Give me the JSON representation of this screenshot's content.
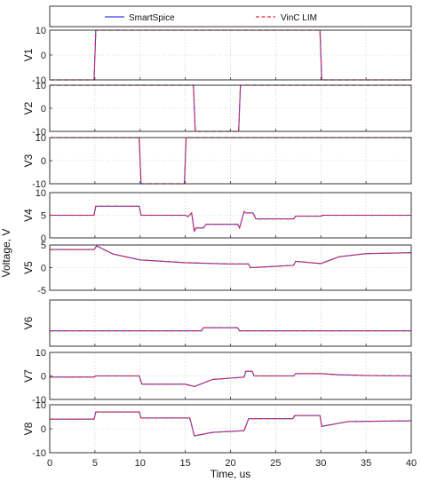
{
  "chart_data": {
    "type": "line",
    "legend": {
      "position": "top",
      "entries": [
        {
          "name": "SmartSpice",
          "color": "#3a3af0",
          "dash": "solid"
        },
        {
          "name": "VinC LIM",
          "color": "#e8283c",
          "dash": "dashed"
        }
      ]
    },
    "xlabel": "Time, us",
    "ylabel": "Voltage, V",
    "xlim": [
      0,
      40
    ],
    "xticks": [
      "0",
      "5",
      "10",
      "15",
      "20",
      "25",
      "30",
      "35",
      "40"
    ],
    "grid": true,
    "panels": [
      {
        "label": "V1",
        "ylim": [
          -10,
          10
        ],
        "yticks": [
          "-10",
          "0",
          "10"
        ],
        "x": [
          0,
          4.9,
          5.1,
          29.9,
          30.1,
          40
        ],
        "series": [
          {
            "name": "SmartSpice",
            "values": [
              -10,
              -10,
              10,
              10,
              -10,
              -10
            ]
          },
          {
            "name": "VinC LIM",
            "values": [
              -10,
              -10,
              10,
              10,
              -10,
              -10
            ]
          }
        ]
      },
      {
        "label": "V2",
        "ylim": [
          -10,
          10
        ],
        "yticks": [
          "-10",
          "0",
          "10"
        ],
        "x": [
          0,
          15.9,
          16.1,
          20.9,
          21.1,
          40
        ],
        "series": [
          {
            "name": "SmartSpice",
            "values": [
              10,
              10,
              -10,
              -10,
              10,
              10
            ]
          },
          {
            "name": "VinC LIM",
            "values": [
              10,
              10,
              -10,
              -10,
              10,
              10
            ]
          }
        ]
      },
      {
        "label": "V3",
        "ylim": [
          -10,
          10
        ],
        "yticks": [
          "-10",
          "0",
          "10"
        ],
        "x": [
          0,
          9.9,
          10.1,
          14.9,
          15.1,
          40
        ],
        "series": [
          {
            "name": "SmartSpice",
            "values": [
              10,
              10,
              -10,
              -10,
              10,
              10
            ]
          },
          {
            "name": "VinC LIM",
            "values": [
              10,
              10,
              -10,
              -10,
              10,
              10
            ]
          }
        ]
      },
      {
        "label": "V4",
        "ylim": [
          0,
          10
        ],
        "yticks": [
          "0",
          "5",
          "10"
        ],
        "x": [
          0,
          4.9,
          5.1,
          9.9,
          10.1,
          15,
          15.3,
          15.7,
          16,
          16.2,
          17,
          17.3,
          20.8,
          21,
          21.5,
          21.7,
          22.5,
          22.8,
          27,
          27.2,
          30,
          30.2,
          40
        ],
        "series": [
          {
            "name": "SmartSpice",
            "values": [
              5,
              5,
              7,
              7,
              5,
              5,
              4.7,
              5.5,
              1.5,
              2.2,
              2.2,
              3,
              3,
              2.2,
              5.8,
              5.5,
              5.5,
              4.2,
              4.2,
              4.8,
              4.8,
              5,
              5
            ]
          },
          {
            "name": "VinC LIM",
            "values": [
              5,
              5,
              7,
              7,
              5,
              5,
              4.7,
              5.5,
              1.5,
              2.2,
              2.2,
              3,
              3,
              2.2,
              5.8,
              5.5,
              5.5,
              4.2,
              4.2,
              4.8,
              4.8,
              5,
              5
            ]
          }
        ]
      },
      {
        "label": "V5",
        "ylim": [
          -5,
          5
        ],
        "yticks": [
          "-5",
          "0",
          "5"
        ],
        "x": [
          0,
          4.9,
          5.2,
          7,
          10,
          15,
          20,
          22,
          22.2,
          27,
          27.2,
          30,
          32,
          35,
          40
        ],
        "series": [
          {
            "name": "SmartSpice",
            "values": [
              4,
              4,
              4.8,
              3,
              1.7,
              1.1,
              0.8,
              0.8,
              0,
              0.5,
              1.4,
              0.9,
              2.4,
              3.1,
              3.3
            ]
          },
          {
            "name": "VinC LIM",
            "values": [
              4,
              4,
              4.8,
              3,
              1.7,
              1.1,
              0.8,
              0.8,
              0,
              0.5,
              1.4,
              0.9,
              2.4,
              3.1,
              3.3
            ]
          }
        ]
      },
      {
        "label": "V6",
        "ylim": [
          -5,
          10
        ],
        "yticks": [],
        "x": [
          0,
          16.8,
          17,
          20.8,
          21,
          40
        ],
        "series": [
          {
            "name": "SmartSpice",
            "values": [
              0,
              0,
              1,
              1,
              0,
              0
            ]
          },
          {
            "name": "VinC LIM",
            "values": [
              0,
              0,
              1,
              1,
              0,
              0
            ]
          }
        ]
      },
      {
        "label": "V7",
        "ylim": [
          -10,
          10
        ],
        "yticks": [
          "-10",
          "0",
          "10"
        ],
        "x": [
          0,
          4.9,
          5.1,
          9.9,
          10.2,
          15,
          16,
          18,
          21.5,
          21.7,
          22.4,
          22.6,
          27,
          27.2,
          30,
          32,
          35,
          40
        ],
        "series": [
          {
            "name": "SmartSpice",
            "values": [
              -0.5,
              -0.5,
              0,
              0,
              -3.5,
              -3.5,
              -4.5,
              -1.5,
              -0.5,
              2,
              2,
              0,
              0,
              1,
              1,
              0.5,
              0.2,
              0
            ]
          },
          {
            "name": "VinC LIM",
            "values": [
              -0.5,
              -0.5,
              0,
              0,
              -3.5,
              -3.5,
              -4.5,
              -1.5,
              -0.5,
              2,
              2,
              0,
              0,
              1,
              1,
              0.5,
              0.2,
              0
            ]
          }
        ]
      },
      {
        "label": "V8",
        "ylim": [
          -10,
          10
        ],
        "yticks": [
          "-10",
          "0",
          "10"
        ],
        "x": [
          0,
          4.9,
          5.1,
          9.9,
          10.1,
          15.5,
          16,
          18,
          21.5,
          22,
          22.2,
          26.9,
          27.1,
          29.9,
          30.1,
          33,
          40
        ],
        "series": [
          {
            "name": "SmartSpice",
            "values": [
              4,
              4,
              7,
              7,
              4.5,
              4.5,
              -3,
              -1.5,
              -0.8,
              4.2,
              4.2,
              4.2,
              5.5,
              5.5,
              1,
              3,
              3.3
            ]
          },
          {
            "name": "VinC LIM",
            "values": [
              4,
              4,
              7,
              7,
              4.5,
              4.5,
              -3,
              -1.5,
              -0.8,
              4.2,
              4.2,
              4.2,
              5.5,
              5.5,
              1,
              3,
              3.3
            ]
          }
        ]
      }
    ]
  }
}
